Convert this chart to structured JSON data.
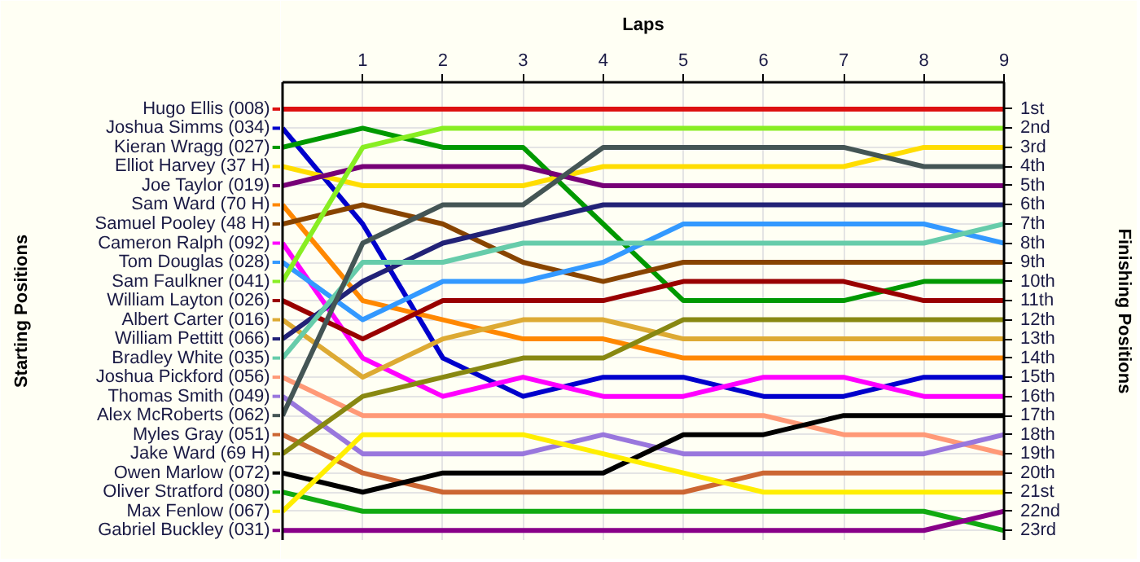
{
  "chart_data": {
    "type": "line",
    "xlabel": "Laps",
    "ylabel": "Finishing Positions",
    "annotations": [
      "Starting Positions"
    ],
    "legend": "left",
    "x": [
      0,
      1,
      2,
      3,
      4,
      5,
      6,
      7,
      8,
      9
    ],
    "xlim": [
      0,
      9
    ],
    "xticks": [
      1,
      2,
      3,
      4,
      5,
      6,
      7,
      8,
      9
    ],
    "ylim": [
      23.5,
      -0.4
    ],
    "yticks": [
      {
        "value": 1,
        "label": "1st"
      },
      {
        "value": 2,
        "label": "2nd"
      },
      {
        "value": 3,
        "label": "3rd"
      },
      {
        "value": 4,
        "label": "4th"
      },
      {
        "value": 5,
        "label": "5th"
      },
      {
        "value": 6,
        "label": "6th"
      },
      {
        "value": 7,
        "label": "7th"
      },
      {
        "value": 8,
        "label": "8th"
      },
      {
        "value": 9,
        "label": "9th"
      },
      {
        "value": 10,
        "label": "10th"
      },
      {
        "value": 11,
        "label": "11th"
      },
      {
        "value": 12,
        "label": "12th"
      },
      {
        "value": 13,
        "label": "13th"
      },
      {
        "value": 14,
        "label": "14th"
      },
      {
        "value": 15,
        "label": "15th"
      },
      {
        "value": 16,
        "label": "16th"
      },
      {
        "value": 17,
        "label": "17th"
      },
      {
        "value": 18,
        "label": "18th"
      },
      {
        "value": 19,
        "label": "19th"
      },
      {
        "value": 20,
        "label": "20th"
      },
      {
        "value": 21,
        "label": "21st"
      },
      {
        "value": 22,
        "label": "22nd"
      },
      {
        "value": 23,
        "label": "23rd"
      }
    ],
    "grid": true,
    "line_style": "solid",
    "series": [
      {
        "name": "Hugo Ellis (008)",
        "color": "#dd1111",
        "values": [
          1,
          1,
          1,
          1,
          1,
          1,
          1,
          1,
          1,
          1
        ]
      },
      {
        "name": "Joshua Simms (034)",
        "color": "#0000cc",
        "values": [
          2,
          7,
          14,
          16,
          15,
          15,
          16,
          16,
          15,
          15
        ]
      },
      {
        "name": "Kieran Wragg (027)",
        "color": "#009900",
        "values": [
          3,
          2,
          3,
          3,
          7,
          11,
          11,
          11,
          10,
          10
        ]
      },
      {
        "name": "Elliot Harvey (37 H)",
        "color": "#ffdd00",
        "values": [
          4,
          5,
          5,
          5,
          4,
          4,
          4,
          4,
          3,
          3
        ]
      },
      {
        "name": "Joe Taylor (019)",
        "color": "#770077",
        "values": [
          5,
          4,
          4,
          4,
          5,
          5,
          5,
          5,
          5,
          5
        ]
      },
      {
        "name": "Sam Ward (70 H)",
        "color": "#ff8800",
        "values": [
          6,
          11,
          12,
          13,
          13,
          14,
          14,
          14,
          14,
          14
        ]
      },
      {
        "name": "Samuel Pooley (48 H)",
        "color": "#884400",
        "values": [
          7,
          6,
          7,
          9,
          10,
          9,
          9,
          9,
          9,
          9
        ]
      },
      {
        "name": "Cameron Ralph (092)",
        "color": "#ff00ff",
        "values": [
          8,
          14,
          16,
          15,
          16,
          16,
          15,
          15,
          16,
          16
        ]
      },
      {
        "name": "Tom Douglas (028)",
        "color": "#3399ff",
        "values": [
          9,
          12,
          10,
          10,
          9,
          7,
          7,
          7,
          7,
          8
        ]
      },
      {
        "name": "Sam Faulkner (041)",
        "color": "#88ee22",
        "values": [
          10,
          3,
          2,
          2,
          2,
          2,
          2,
          2,
          2,
          2
        ]
      },
      {
        "name": "William Layton (026)",
        "color": "#990000",
        "values": [
          11,
          13,
          11,
          11,
          11,
          10,
          10,
          10,
          11,
          11
        ]
      },
      {
        "name": "Albert Carter (016)",
        "color": "#ddaa33",
        "values": [
          12,
          15,
          13,
          12,
          12,
          13,
          13,
          13,
          13,
          13
        ]
      },
      {
        "name": "William Pettitt (066)",
        "color": "#222277",
        "values": [
          13,
          10,
          8,
          7,
          6,
          6,
          6,
          6,
          6,
          6
        ]
      },
      {
        "name": "Bradley White (035)",
        "color": "#66ccaa",
        "values": [
          14,
          9,
          9,
          8,
          8,
          8,
          8,
          8,
          8,
          7
        ]
      },
      {
        "name": "Joshua Pickford (056)",
        "color": "#ff9977",
        "values": [
          15,
          17,
          17,
          17,
          17,
          17,
          17,
          18,
          18,
          19
        ]
      },
      {
        "name": "Thomas Smith (049)",
        "color": "#9977dd",
        "values": [
          16,
          19,
          19,
          19,
          18,
          19,
          19,
          19,
          19,
          18
        ]
      },
      {
        "name": "Alex McRoberts (062)",
        "color": "#445555",
        "values": [
          17,
          8,
          6,
          6,
          3,
          3,
          3,
          3,
          4,
          4
        ]
      },
      {
        "name": "Myles Gray (051)",
        "color": "#cc6633",
        "values": [
          18,
          20,
          21,
          21,
          21,
          21,
          20,
          20,
          20,
          20
        ]
      },
      {
        "name": "Jake Ward (69 H)",
        "color": "#888811",
        "values": [
          19,
          16,
          15,
          14,
          14,
          12,
          12,
          12,
          12,
          12
        ]
      },
      {
        "name": "Owen Marlow (072)",
        "color": "#000000",
        "values": [
          20,
          21,
          20,
          20,
          20,
          18,
          18,
          17,
          17,
          17
        ]
      },
      {
        "name": "Oliver Stratford (080)",
        "color": "#11aa11",
        "values": [
          21,
          22,
          22,
          22,
          22,
          22,
          22,
          22,
          22,
          23
        ]
      },
      {
        "name": "Max Fenlow (067)",
        "color": "#ffee00",
        "values": [
          22,
          18,
          18,
          18,
          19,
          20,
          21,
          21,
          21,
          21
        ]
      },
      {
        "name": "Gabriel Buckley (031)",
        "color": "#880088",
        "values": [
          23,
          23,
          23,
          23,
          23,
          23,
          23,
          23,
          23,
          22
        ]
      }
    ]
  }
}
